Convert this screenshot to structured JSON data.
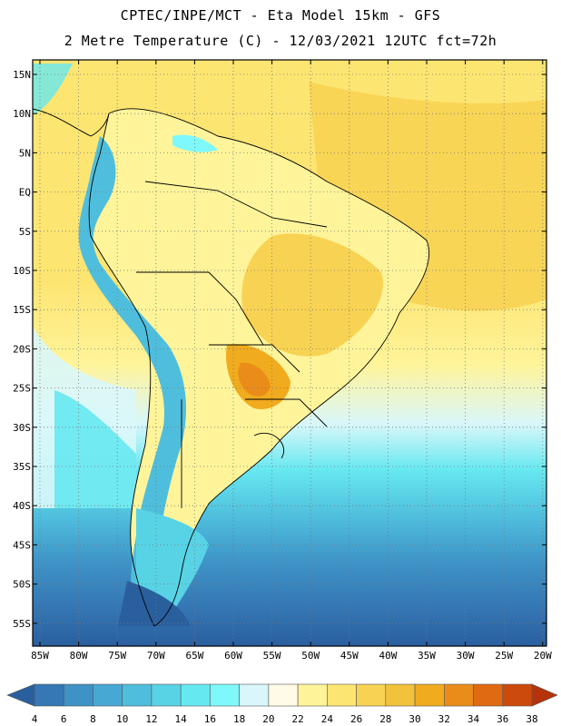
{
  "header": {
    "title_line1": "CPTEC/INPE/MCT -  Eta Model 15km - GFS",
    "title_line2": "2 Metre Temperature (C) - 12/03/2021 12UTC fct=72h"
  },
  "map": {
    "lat_labels": [
      "15N",
      "10N",
      "5N",
      "EQ",
      "5S",
      "10S",
      "15S",
      "20S",
      "25S",
      "30S",
      "35S",
      "40S",
      "45S",
      "50S",
      "55S"
    ],
    "lon_labels": [
      "85W",
      "80W",
      "75W",
      "70W",
      "65W",
      "60W",
      "55W",
      "50W",
      "45W",
      "40W",
      "35W",
      "30W",
      "25W",
      "20W"
    ]
  },
  "colorbar": {
    "labels": [
      "4",
      "6",
      "8",
      "10",
      "12",
      "14",
      "16",
      "18",
      "20",
      "22",
      "24",
      "26",
      "28",
      "30",
      "32",
      "34",
      "36",
      "38"
    ],
    "colors": [
      "#2a5f9e",
      "#3578b5",
      "#3e92c6",
      "#47a8d4",
      "#4fbedd",
      "#58d3e6",
      "#66e8f0",
      "#7ff8fb",
      "#d9f7fa",
      "#fffbe6",
      "#fff49a",
      "#fde572",
      "#f8d353",
      "#f3c23b",
      "#f0ab1e",
      "#ea8c1a",
      "#e06a12",
      "#cc4a0c",
      "#b4330a"
    ]
  }
}
